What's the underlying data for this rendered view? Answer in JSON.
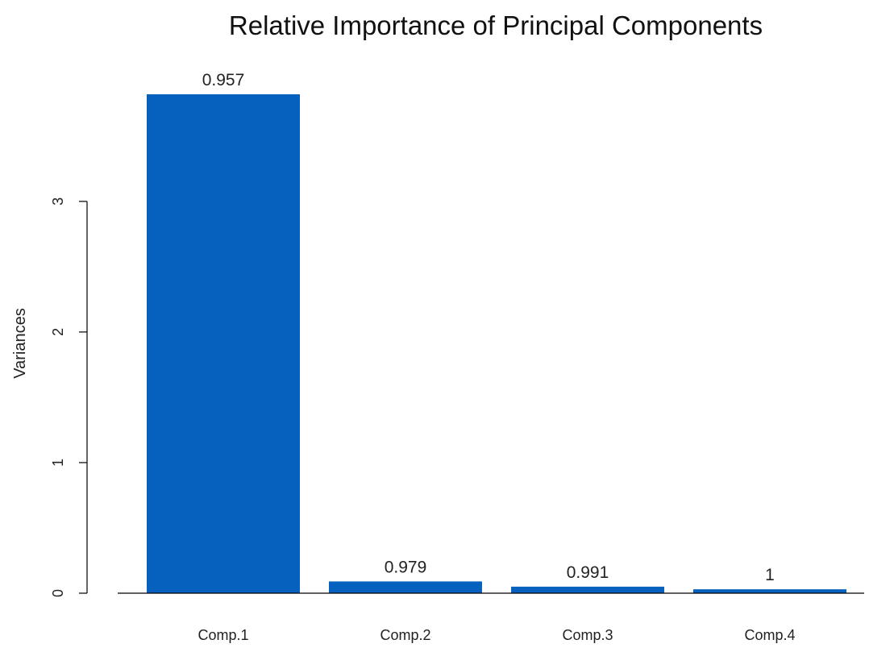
{
  "chart_data": {
    "type": "bar",
    "title": "Relative Importance of Principal Components",
    "xlabel": "",
    "ylabel": "Variances",
    "categories": [
      "Comp.1",
      "Comp.2",
      "Comp.3",
      "Comp.4"
    ],
    "values": [
      3.82,
      0.09,
      0.05,
      0.03
    ],
    "bar_labels": [
      "0.957",
      "0.979",
      "0.991",
      "1"
    ],
    "y_ticks": [
      0,
      1,
      2,
      3
    ],
    "ylim": [
      0,
      3.82
    ],
    "grid": false,
    "legend": "none",
    "bar_color": "#0560BE"
  }
}
